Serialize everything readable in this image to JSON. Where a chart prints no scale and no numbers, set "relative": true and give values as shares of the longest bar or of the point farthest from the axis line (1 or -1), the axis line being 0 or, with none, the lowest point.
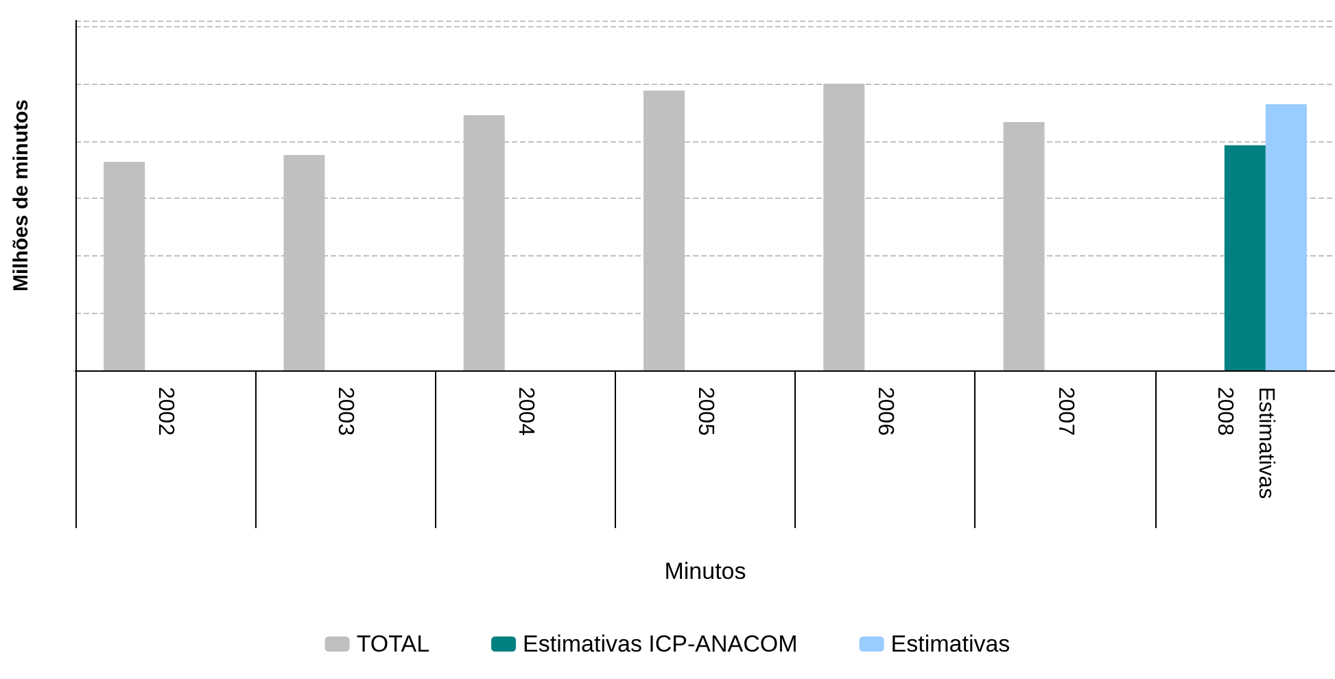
{
  "chart_data": {
    "type": "bar",
    "relative": true,
    "ylabel": "Milhões de minutos",
    "xlabel": "Minutos",
    "categories": [
      "2002",
      "2003",
      "2004",
      "2005",
      "2006",
      "2007",
      "Estimativas 2008"
    ],
    "series": [
      {
        "name": "TOTAL",
        "color": "#c0c0c0",
        "values": [
          0.727,
          0.751,
          0.89,
          0.976,
          1,
          0.866,
          null
        ]
      },
      {
        "name": "Estimativas ICP-ANACOM",
        "color": "#008080",
        "values": [
          null,
          null,
          null,
          null,
          null,
          null,
          0.785
        ]
      },
      {
        "name": "Estimativas",
        "color": "#99ccff",
        "values": [
          null,
          null,
          null,
          null,
          null,
          null,
          0.928
        ]
      }
    ],
    "grid": "y",
    "legend": "bottom"
  }
}
